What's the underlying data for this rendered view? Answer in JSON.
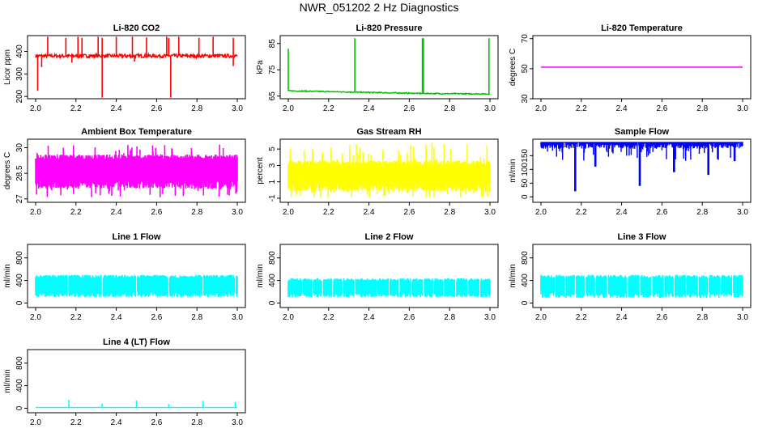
{
  "title": "NWR_051202  2 Hz Diagnostics",
  "chart_data": [
    {
      "type": "line",
      "title": "Li-820 CO2",
      "ylabel": "Licor ppm",
      "color": "#ff0000",
      "xlim": [
        2.0,
        3.0
      ],
      "ylim": [
        190,
        470
      ],
      "xticks": [
        "2.0",
        "2.2",
        "2.4",
        "2.6",
        "2.8",
        "3.0"
      ],
      "yticks": [
        200,
        300,
        400
      ],
      "series": [
        {
          "base": 380,
          "noise": 8,
          "spikes_up": [
            [
              2.06,
              465
            ],
            [
              2.15,
              460
            ],
            [
              2.21,
              465
            ],
            [
              2.23,
              460
            ],
            [
              2.31,
              465
            ],
            [
              2.33,
              460
            ],
            [
              2.4,
              465
            ],
            [
              2.48,
              465
            ],
            [
              2.55,
              462
            ],
            [
              2.65,
              465
            ],
            [
              2.66,
              460
            ],
            [
              2.71,
              465
            ],
            [
              2.81,
              460
            ],
            [
              2.88,
              465
            ],
            [
              2.98,
              460
            ]
          ],
          "spikes_down": [
            [
              2.01,
              225
            ],
            [
              2.03,
              330
            ],
            [
              2.33,
              195
            ],
            [
              2.67,
              195
            ],
            [
              2.49,
              355
            ],
            [
              2.98,
              335
            ],
            [
              2.18,
              350
            ]
          ]
        }
      ]
    },
    {
      "type": "line",
      "title": "Li-820 Pressure",
      "ylabel": "kPa",
      "color": "#00c000",
      "xlim": [
        2.0,
        3.0
      ],
      "ylim": [
        64,
        88
      ],
      "xticks": [
        "2.0",
        "2.2",
        "2.4",
        "2.6",
        "2.8",
        "3.0"
      ],
      "yticks": [
        65,
        75,
        85
      ],
      "series": [
        {
          "points": [
            [
              2.0,
              67.0
            ],
            [
              2.33,
              66.5
            ],
            [
              2.665,
              66.0
            ],
            [
              3.0,
              65.8
            ]
          ],
          "noise": 0.2,
          "spikes_up": [
            [
              2.0,
              83
            ],
            [
              2.33,
              87
            ],
            [
              2.665,
              87
            ],
            [
              2.67,
              87
            ],
            [
              2.995,
              87
            ]
          ]
        }
      ]
    },
    {
      "type": "line",
      "title": "Li-820 Temperature",
      "ylabel": "degrees C",
      "color": "#ff00ff",
      "xlim": [
        2.0,
        3.0
      ],
      "ylim": [
        30,
        72
      ],
      "xticks": [
        "2.0",
        "2.2",
        "2.4",
        "2.6",
        "2.8",
        "3.0"
      ],
      "yticks": [
        30,
        50,
        70
      ],
      "series": [
        {
          "points": [
            [
              2.0,
              51.0
            ],
            [
              3.0,
              51.0
            ]
          ],
          "noise": 0
        }
      ]
    },
    {
      "type": "line",
      "title": "Ambient Box Temperature",
      "ylabel": "degrees C",
      "color": "#ff00ff",
      "xlim": [
        2.0,
        3.0
      ],
      "ylim": [
        26.8,
        30.5
      ],
      "xticks": [
        "2.0",
        "2.2",
        "2.4",
        "2.6",
        "2.8",
        "3.0"
      ],
      "yticks": [
        27.0,
        28.5,
        30.0
      ],
      "series": [
        {
          "band": [
            27.6,
            29.6
          ],
          "extremes": [
            27.1,
            30.3
          ]
        }
      ]
    },
    {
      "type": "line",
      "title": "Gas Stream RH",
      "ylabel": "percent",
      "color": "#ffff00",
      "xlim": [
        2.0,
        3.0
      ],
      "ylim": [
        -1.5,
        6.2
      ],
      "xticks": [
        "2.0",
        "2.2",
        "2.4",
        "2.6",
        "2.8",
        "3.0"
      ],
      "yticks": [
        -1,
        1,
        3,
        5
      ],
      "series": [
        {
          "band": [
            -0.2,
            3.6
          ],
          "extremes": [
            -1.0,
            5.8
          ]
        }
      ]
    },
    {
      "type": "line",
      "title": "Sample Flow",
      "ylabel": "ml/min",
      "color": "#0000ff",
      "xlim": [
        2.0,
        3.0
      ],
      "ylim": [
        -20,
        210
      ],
      "xticks": [
        "2.0",
        "2.2",
        "2.4",
        "2.6",
        "2.8",
        "3.0"
      ],
      "yticks": [
        0,
        50,
        100,
        150
      ],
      "series": [
        {
          "top": 200,
          "dips": [
            [
              2.17,
              20
            ],
            [
              2.27,
              110
            ],
            [
              2.49,
              40
            ],
            [
              2.66,
              90
            ],
            [
              2.83,
              80
            ],
            [
              2.96,
              130
            ]
          ]
        }
      ]
    },
    {
      "type": "line",
      "title": "Line 1 Flow",
      "ylabel": "ml/min",
      "color": "#00ffff",
      "xlim": [
        2.0,
        3.0
      ],
      "ylim": [
        -80,
        1040
      ],
      "xticks": [
        "2.0",
        "2.2",
        "2.4",
        "2.6",
        "2.8",
        "3.0"
      ],
      "yticks": [
        0,
        400,
        800
      ],
      "series": [
        {
          "band": [
            100,
            500
          ],
          "gaps": [
            2.16,
            2.33,
            2.5,
            2.66,
            2.83,
            2.99
          ]
        }
      ]
    },
    {
      "type": "line",
      "title": "Line 2 Flow",
      "ylabel": "ml/min",
      "color": "#00ffff",
      "xlim": [
        2.0,
        3.0
      ],
      "ylim": [
        -80,
        1040
      ],
      "xticks": [
        "2.0",
        "2.2",
        "2.4",
        "2.6",
        "2.8",
        "3.0"
      ],
      "yticks": [
        0,
        400,
        800
      ],
      "series": [
        {
          "band": [
            100,
            440
          ],
          "gaps": [
            2.07,
            2.12,
            2.17,
            2.22,
            2.27,
            2.33,
            2.44,
            2.5,
            2.55,
            2.61,
            2.67,
            2.72,
            2.77,
            2.83,
            2.89,
            2.95
          ]
        }
      ]
    },
    {
      "type": "line",
      "title": "Line 3 Flow",
      "ylabel": "ml/min",
      "color": "#00ffff",
      "xlim": [
        2.0,
        3.0
      ],
      "ylim": [
        -80,
        1040
      ],
      "xticks": [
        "2.0",
        "2.2",
        "2.4",
        "2.6",
        "2.8",
        "3.0"
      ],
      "yticks": [
        0,
        400,
        800
      ],
      "series": [
        {
          "band": [
            90,
            500
          ],
          "gaps": [
            2.07,
            2.12,
            2.17,
            2.22,
            2.27,
            2.33,
            2.43,
            2.49,
            2.55,
            2.61,
            2.66,
            2.72,
            2.78,
            2.83,
            2.89,
            2.95
          ]
        }
      ]
    },
    {
      "type": "line",
      "title": "Line 4 (LT) Flow",
      "ylabel": "ml/min",
      "color": "#00ffff",
      "xlim": [
        2.0,
        3.0
      ],
      "ylim": [
        -80,
        1040
      ],
      "xticks": [
        "2.0",
        "2.2",
        "2.4",
        "2.6",
        "2.8",
        "3.0"
      ],
      "yticks": [
        0,
        400,
        800
      ],
      "series": [
        {
          "base": 12,
          "spikes_up": [
            [
              2.165,
              150
            ],
            [
              2.33,
              80
            ],
            [
              2.5,
              140
            ],
            [
              2.66,
              75
            ],
            [
              2.83,
              130
            ],
            [
              2.99,
              110
            ]
          ]
        }
      ]
    }
  ]
}
